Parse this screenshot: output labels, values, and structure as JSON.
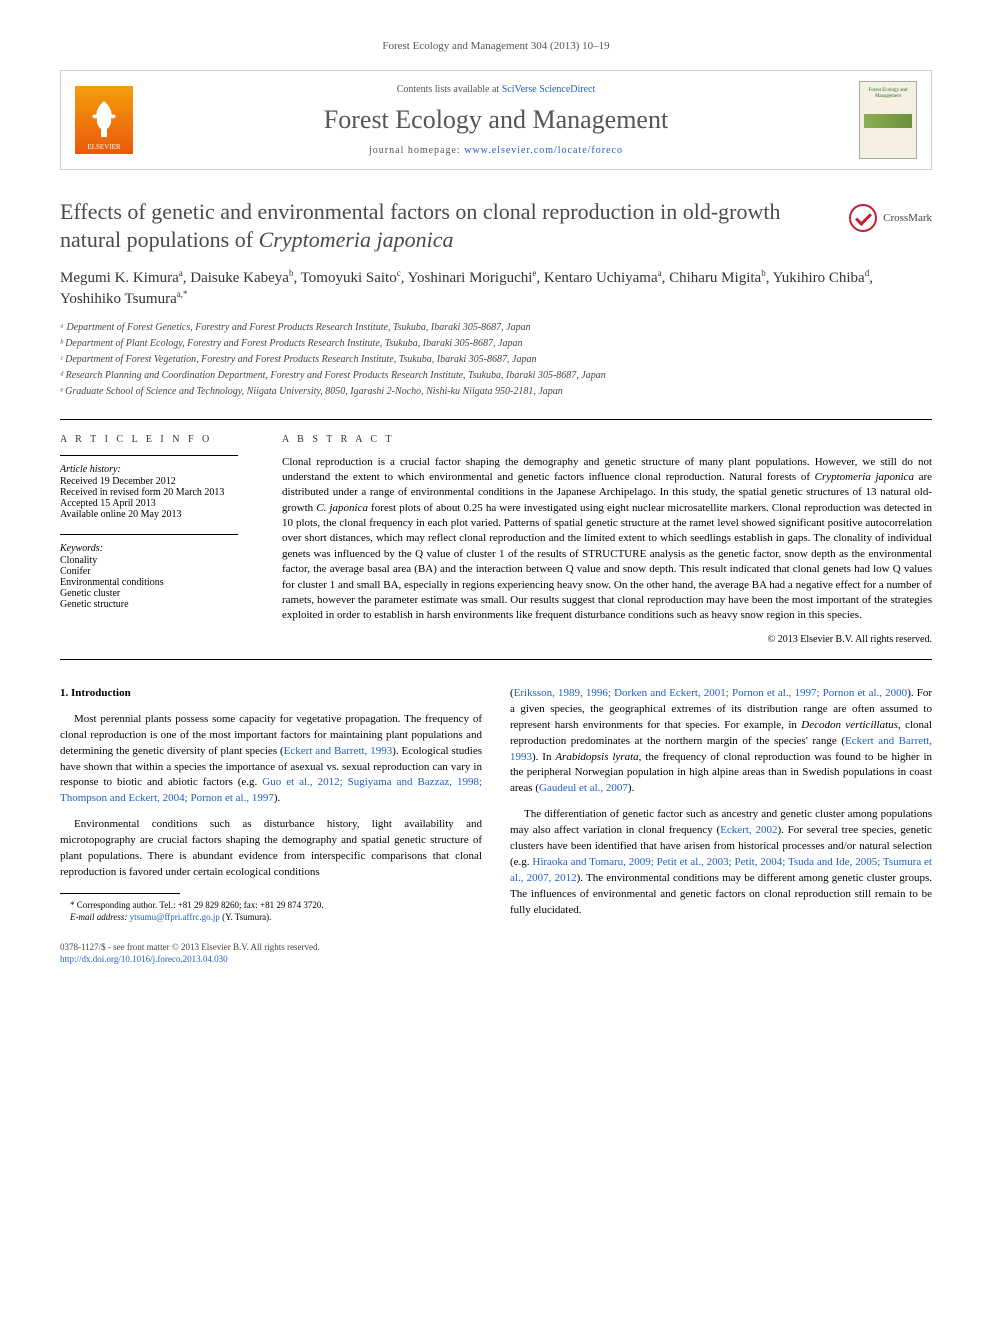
{
  "journal_ref": "Forest Ecology and Management 304 (2013) 10–19",
  "header": {
    "publisher": "ELSEVIER",
    "contents_list": "Contents lists available at ",
    "contents_link": "SciVerse ScienceDirect",
    "journal_name": "Forest Ecology and Management",
    "homepage_label": "journal homepage: ",
    "homepage_url": "www.elsevier.com/locate/foreco",
    "cover_title": "Forest Ecology and Management"
  },
  "title_html": "Effects of genetic and environmental factors on clonal reproduction in old-growth natural populations of <em>Cryptomeria japonica</em>",
  "crossmark": "CrossMark",
  "authors_html": "Megumi K. Kimura<sup>a</sup>, Daisuke Kabeya<sup>b</sup>, Tomoyuki Saito<sup>c</sup>, Yoshinari Moriguchi<sup>e</sup>, Kentaro Uchiyama<sup>a</sup>, Chiharu Migita<sup>b</sup>, Yukihiro Chiba<sup>d</sup>, Yoshihiko Tsumura<sup>a,*</sup>",
  "affiliations": [
    "ᵃ Department of Forest Genetics, Forestry and Forest Products Research Institute, Tsukuba, Ibaraki 305-8687, Japan",
    "ᵇ Department of Plant Ecology, Forestry and Forest Products Research Institute, Tsukuba, Ibaraki 305-8687, Japan",
    "ᶜ Department of Forest Vegetation, Forestry and Forest Products Research Institute, Tsukuba, Ibaraki 305-8687, Japan",
    "ᵈ Research Planning and Coordination Department, Forestry and Forest Products Research Institute, Tsukuba, Ibaraki 305-8687, Japan",
    "ᵉ Graduate School of Science and Technology, Niigata University, 8050, Igarashi 2-Nocho, Nishi-ku Niigata 950-2181, Japan"
  ],
  "info": {
    "heading": "A R T I C L E   I N F O",
    "history_label": "Article history:",
    "history": [
      "Received 19 December 2012",
      "Received in revised form 20 March 2013",
      "Accepted 15 April 2013",
      "Available online 20 May 2013"
    ],
    "keywords_label": "Keywords:",
    "keywords": [
      "Clonality",
      "Conifer",
      "Environmental conditions",
      "Genetic cluster",
      "Genetic structure"
    ]
  },
  "abstract": {
    "heading": "A B S T R A C T",
    "text_html": "Clonal reproduction is a crucial factor shaping the demography and genetic structure of many plant populations. However, we still do not understand the extent to which environmental and genetic factors influence clonal reproduction. Natural forests of <em>Cryptomeria japonica</em> are distributed under a range of environmental conditions in the Japanese Archipelago. In this study, the spatial genetic structures of 13 natural old-growth <em>C. japonica</em> forest plots of about 0.25 ha were investigated using eight nuclear microsatellite markers. Clonal reproduction was detected in 10 plots, the clonal frequency in each plot varied. Patterns of spatial genetic structure at the ramet level showed significant positive autocorrelation over short distances, which may reflect clonal reproduction and the limited extent to which seedlings establish in gaps. The clonality of individual genets was influenced by the Q value of cluster 1 of the results of STRUCTURE analysis as the genetic factor, snow depth as the environmental factor, the average basal area (BA) and the interaction between Q value and snow depth. This result indicated that clonal genets had low Q values for cluster 1 and small BA, especially in regions experiencing heavy snow. On the other hand, the average BA had a negative effect for a number of ramets, however the parameter estimate was small. Our results suggest that clonal reproduction may have been the most important of the strategies exploited in order to establish in harsh environments like frequent disturbance conditions such as heavy snow region in this species.",
    "copyright": "© 2013 Elsevier B.V. All rights reserved."
  },
  "body": {
    "section1_heading": "1. Introduction",
    "p1_html": "Most perennial plants possess some capacity for vegetative propagation. The frequency of clonal reproduction is one of the most important factors for maintaining plant populations and determining the genetic diversity of plant species (<a href='#'>Eckert and Barrett, 1993</a>). Ecological studies have shown that within a species the importance of asexual vs. sexual reproduction can vary in response to biotic and abiotic factors (e.g. <a href='#'>Guo et al., 2012; Sugiyama and Bazzaz, 1998; Thompson and Eckert, 2004; Pornon et al., 1997</a>).",
    "p2_html": "Environmental conditions such as disturbance history, light availability and microtopography are crucial factors shaping the demography and spatial genetic structure of plant populations. There is abundant evidence from interspecific comparisons that clonal reproduction is favored under certain ecological conditions",
    "p3_html": "(<a href='#'>Eriksson, 1989, 1996; Dorken and Eckert, 2001; Pornon et al., 1997; Pornon et al., 2000</a>). For a given species, the geographical extremes of its distribution range are often assumed to represent harsh environments for that species. For example, in <em>Decodon verticillatus</em>, clonal reproduction predominates at the northern margin of the species' range (<a href='#'>Eckert and Barrett, 1993</a>). In <em>Arabidopsis lyrata</em>, the frequency of clonal reproduction was found to be higher in the peripheral Norwegian population in high alpine areas than in Swedish populations in coast areas (<a href='#'>Gaudeul et al., 2007</a>).",
    "p4_html": "The differentiation of genetic factor such as ancestry and genetic cluster among populations may also affect variation in clonal frequency (<a href='#'>Eckert, 2002</a>). For several tree species, genetic clusters have been identified that have arisen from historical processes and/or natural selection (e.g. <a href='#'>Hiraoka and Tomaru, 2009; Petit et al., 2003; Petit, 2004; Tsuda and Ide, 2005; Tsumura et al., 2007, 2012</a>). The environmental conditions may be different among genetic cluster groups. The influences of environmental and genetic factors on clonal reproduction still remain to be fully elucidated."
  },
  "footnote": {
    "corr": "* Corresponding author. Tel.: +81 29 829 8260; fax: +81 29 874 3720.",
    "email_label": "E-mail address: ",
    "email": "ytsumu@ffpri.affrc.go.jp",
    "email_tail": " (Y. Tsumura)."
  },
  "doi": {
    "line1": "0378-1127/$ - see front matter © 2013 Elsevier B.V. All rights reserved.",
    "line2": "http://dx.doi.org/10.1016/j.foreco.2013.04.030"
  },
  "colors": {
    "link": "#2060c0",
    "text_gray": "#555555",
    "elsevier_orange": "#ea580c"
  }
}
